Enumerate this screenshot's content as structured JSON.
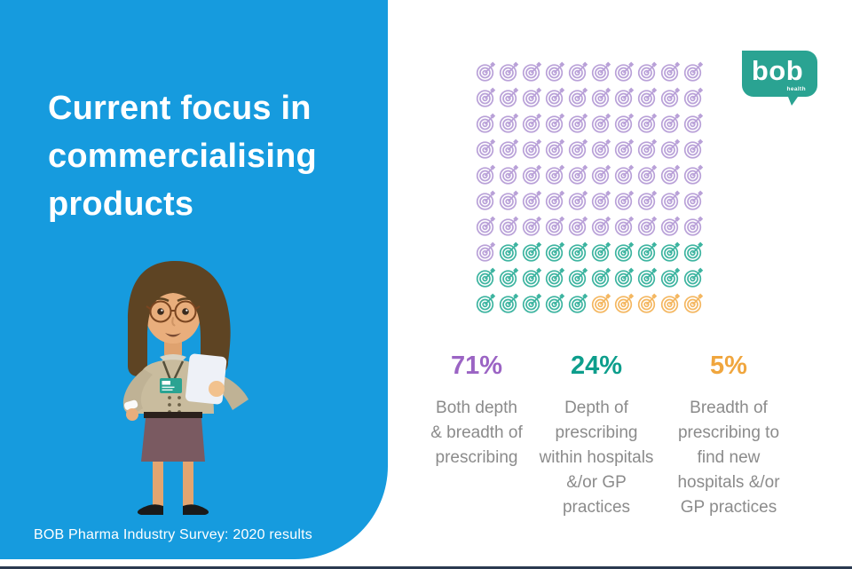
{
  "slide": {
    "bg_color": "#FFFFFF",
    "accent_blue": "#169BDE",
    "bottom_border_color": "#2A3950"
  },
  "left_panel": {
    "title": "Current focus in\ncommercialising\nproducts",
    "footer": "BOB Pharma Industry Survey: 2020 results",
    "illustration": "woman-with-glasses-holding-clipboard-wearing-id-badge"
  },
  "logo": {
    "name": "bob",
    "sub": "health",
    "color": "#2AA392"
  },
  "chart_data": {
    "type": "pictogram",
    "title": "Current focus in commercialising products",
    "icon": "dartboard-target",
    "grid": {
      "rows": 10,
      "cols": 10,
      "icons_total": 100
    },
    "series": [
      {
        "name": "Both depth & breadth of prescribing",
        "value": 71,
        "pct_label": "71%",
        "icon_color": "#B9A1D8",
        "value_color": "#9B64C4"
      },
      {
        "name": "Depth of prescribing within hospitals &/or GP practices",
        "value": 24,
        "pct_label": "24%",
        "icon_color": "#3DB4A0",
        "value_color": "#0D9E8C"
      },
      {
        "name": "Breadth of prescribing to find new hospitals &/or GP practices",
        "value": 5,
        "pct_label": "5%",
        "icon_color": "#F4B761",
        "value_color": "#F0A63E"
      }
    ]
  },
  "stats": [
    {
      "pct": "71%",
      "label": "Both depth\n& breadth of\nprescribing"
    },
    {
      "pct": "24%",
      "label": "Depth of\nprescribing\nwithin hospitals\n&/or GP\npractices"
    },
    {
      "pct": "5%",
      "label": "Breadth of\nprescribing to\nfind new\nhospitals &/or\nGP practices"
    }
  ]
}
